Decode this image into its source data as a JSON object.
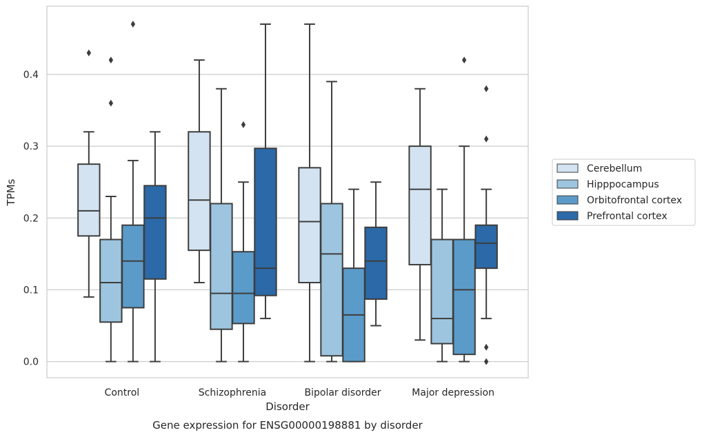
{
  "chart_data": {
    "type": "boxplot",
    "title": "",
    "caption": "Gene expression for ENSG00000198881 by disorder",
    "xlabel": "Disorder",
    "ylabel": "TPMs",
    "ylim": [
      -0.0225,
      0.495
    ],
    "yticks": [
      0.0,
      0.1,
      0.2,
      0.3,
      0.4
    ],
    "ytick_labels": [
      "0.0",
      "0.1",
      "0.2",
      "0.3",
      "0.4"
    ],
    "categories": [
      "Control",
      "Schizophrenia",
      "Bipolar disorder",
      "Major depression"
    ],
    "grid": "horizontal",
    "legend_position": "right",
    "series": [
      {
        "name": "Cerebellum",
        "color": "#d4e3f1",
        "boxes": [
          {
            "q1": 0.175,
            "median": 0.21,
            "q3": 0.275,
            "whislo": 0.09,
            "whishi": 0.32,
            "fliers": [
              0.43
            ]
          },
          {
            "q1": 0.155,
            "median": 0.225,
            "q3": 0.32,
            "whislo": 0.11,
            "whishi": 0.42,
            "fliers": []
          },
          {
            "q1": 0.11,
            "median": 0.195,
            "q3": 0.27,
            "whislo": 0.0,
            "whishi": 0.47,
            "fliers": []
          },
          {
            "q1": 0.135,
            "median": 0.24,
            "q3": 0.3,
            "whislo": 0.03,
            "whishi": 0.38,
            "fliers": []
          }
        ]
      },
      {
        "name": "Hipppocampus",
        "color": "#9dc5df",
        "boxes": [
          {
            "q1": 0.055,
            "median": 0.11,
            "q3": 0.17,
            "whislo": 0.0,
            "whishi": 0.23,
            "fliers": [
              0.42,
              0.36
            ]
          },
          {
            "q1": 0.045,
            "median": 0.095,
            "q3": 0.22,
            "whislo": 0.0,
            "whishi": 0.38,
            "fliers": []
          },
          {
            "q1": 0.008,
            "median": 0.15,
            "q3": 0.22,
            "whislo": 0.0,
            "whishi": 0.39,
            "fliers": []
          },
          {
            "q1": 0.025,
            "median": 0.06,
            "q3": 0.17,
            "whislo": 0.0,
            "whishi": 0.24,
            "fliers": []
          }
        ]
      },
      {
        "name": "Orbitofrontal cortex",
        "color": "#5b9bc9",
        "boxes": [
          {
            "q1": 0.075,
            "median": 0.14,
            "q3": 0.19,
            "whislo": 0.0,
            "whishi": 0.28,
            "fliers": [
              0.47
            ]
          },
          {
            "q1": 0.053,
            "median": 0.095,
            "q3": 0.153,
            "whislo": 0.0,
            "whishi": 0.25,
            "fliers": [
              0.33
            ]
          },
          {
            "q1": 0.0,
            "median": 0.065,
            "q3": 0.13,
            "whislo": 0.0,
            "whishi": 0.24,
            "fliers": []
          },
          {
            "q1": 0.01,
            "median": 0.1,
            "q3": 0.17,
            "whislo": 0.0,
            "whishi": 0.3,
            "fliers": [
              0.42
            ]
          }
        ]
      },
      {
        "name": "Prefrontal cortex",
        "color": "#2b69a8",
        "boxes": [
          {
            "q1": 0.115,
            "median": 0.2,
            "q3": 0.245,
            "whislo": 0.0,
            "whishi": 0.32,
            "fliers": []
          },
          {
            "q1": 0.092,
            "median": 0.13,
            "q3": 0.297,
            "whislo": 0.06,
            "whishi": 0.47,
            "fliers": []
          },
          {
            "q1": 0.087,
            "median": 0.14,
            "q3": 0.187,
            "whislo": 0.05,
            "whishi": 0.25,
            "fliers": []
          },
          {
            "q1": 0.13,
            "median": 0.165,
            "q3": 0.19,
            "whislo": 0.06,
            "whishi": 0.24,
            "fliers": [
              0.38,
              0.31,
              0.02,
              0.0
            ]
          }
        ]
      }
    ]
  }
}
